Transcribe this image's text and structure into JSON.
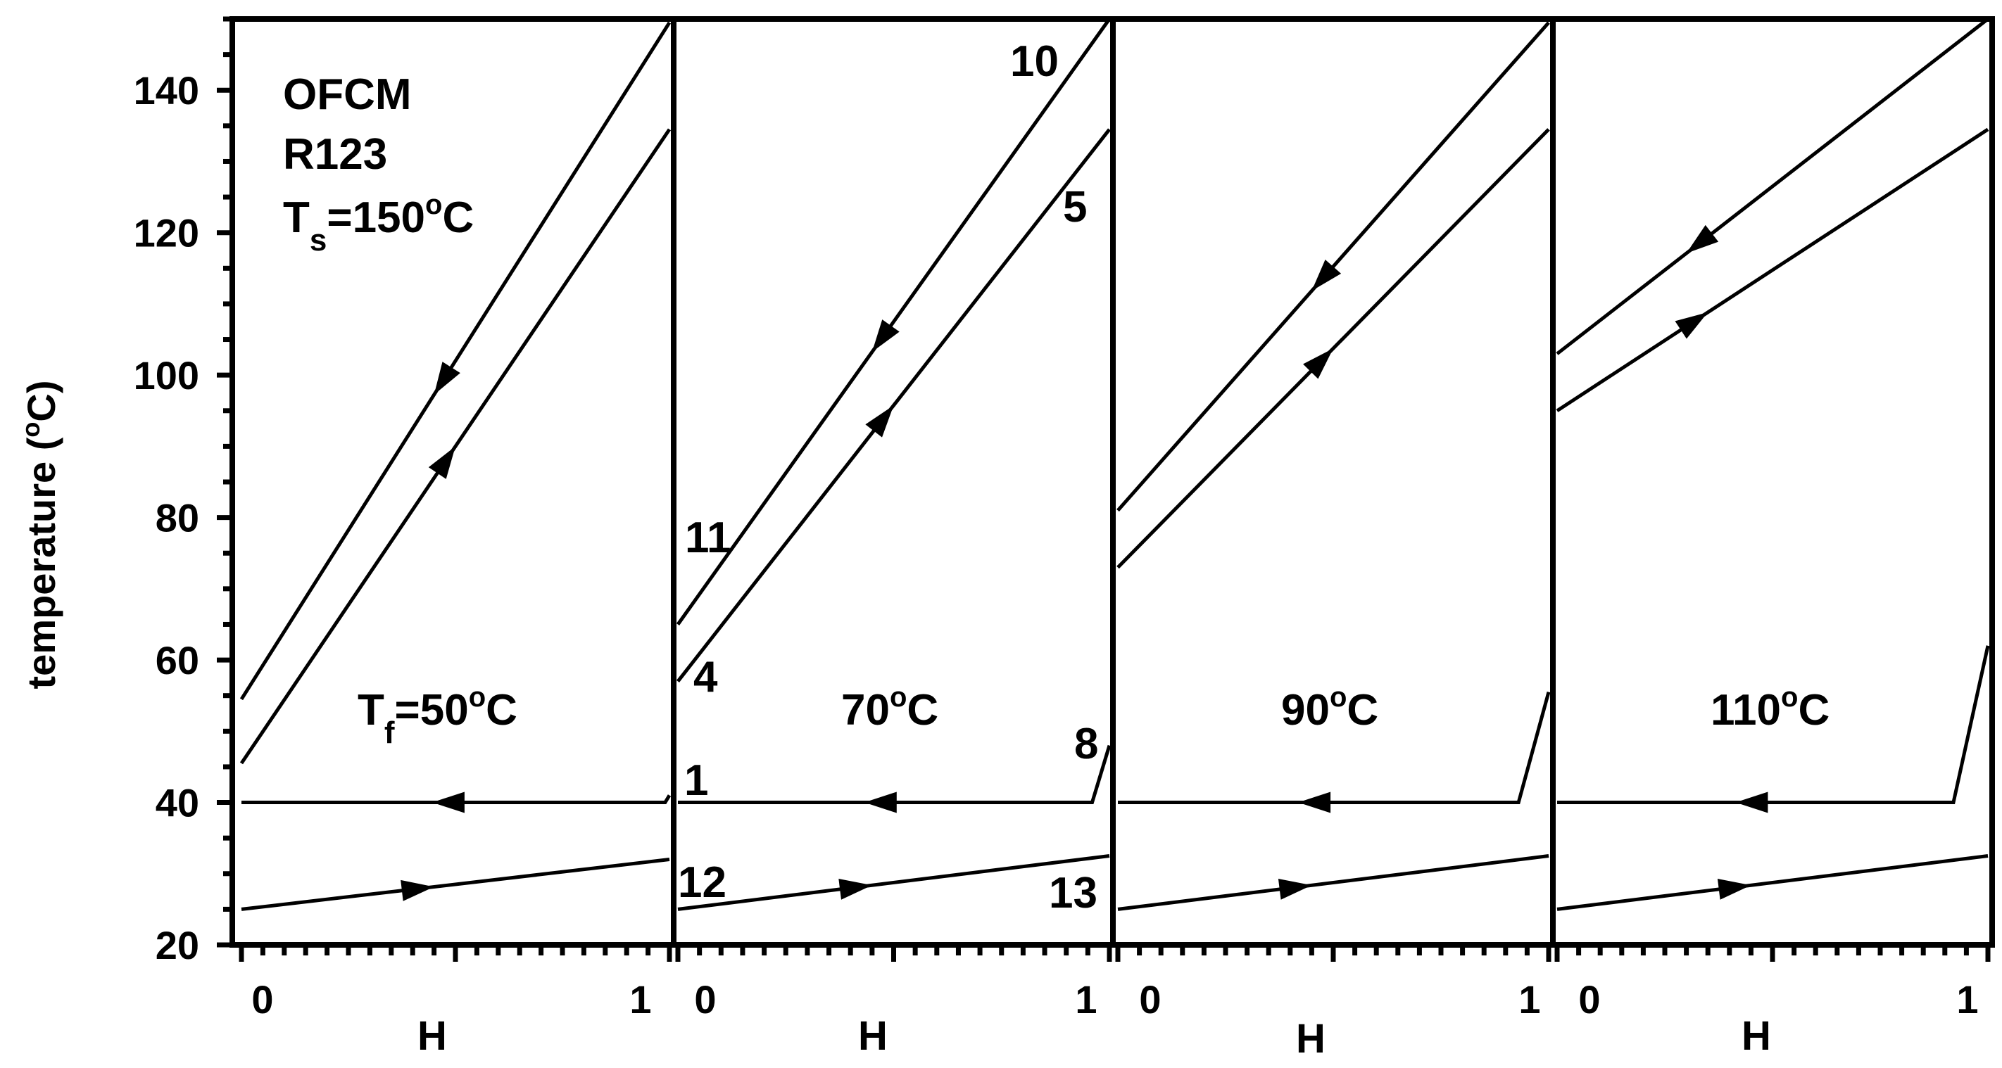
{
  "chart_data": {
    "type": "line",
    "ylabel": "temperature (",
    "ylabel_degree": "o",
    "ylabel_unit": "C)",
    "ylim": [
      20,
      150
    ],
    "yticks": [
      20,
      40,
      60,
      80,
      100,
      120,
      140
    ],
    "xlim": [
      0,
      1
    ],
    "xtick_labels": [
      "0",
      "1"
    ],
    "xlabel": "H",
    "annotation": {
      "line1": "OFCM",
      "line2": "R123",
      "ts_prefix": "T",
      "ts_sub": "s",
      "ts_value": "=150",
      "ts_degree": "o",
      "ts_unit": "C"
    },
    "point_labels": {
      "p10": "10",
      "p5": "5",
      "p11": "11",
      "p4": "4",
      "p8": "8",
      "p1": "1",
      "p12": "12",
      "p13": "13"
    },
    "panels": [
      {
        "label_prefix": "T",
        "label_sub": "f",
        "label_value": "=50",
        "label_degree": "o",
        "label_unit": "C",
        "series": [
          {
            "x": [
              0,
              1
            ],
            "y": [
              54.5,
              149.5
            ],
            "arrow": "left",
            "arrow_at": 0.45
          },
          {
            "x": [
              0,
              1
            ],
            "y": [
              45.5,
              134.5
            ],
            "arrow": "right",
            "arrow_at": 0.5
          },
          {
            "x": [
              0,
              0.99,
              1
            ],
            "y": [
              40,
              40,
              41
            ],
            "arrow": "left",
            "arrow_at": 0.45
          },
          {
            "x": [
              0,
              1
            ],
            "y": [
              25,
              32
            ],
            "arrow": "right",
            "arrow_at": 0.45
          }
        ]
      },
      {
        "label_prefix": "",
        "label_sub": "",
        "label_value": "70",
        "label_degree": "o",
        "label_unit": "C",
        "series": [
          {
            "x": [
              0,
              1
            ],
            "y": [
              65,
              150
            ],
            "arrow": "left",
            "arrow_at": 0.45
          },
          {
            "x": [
              0,
              1
            ],
            "y": [
              57,
              134.5
            ],
            "arrow": "right",
            "arrow_at": 0.5
          },
          {
            "x": [
              0,
              0.96,
              1
            ],
            "y": [
              40,
              40,
              48
            ],
            "arrow": "left",
            "arrow_at": 0.45
          },
          {
            "x": [
              0,
              1
            ],
            "y": [
              25,
              32.5
            ],
            "arrow": "right",
            "arrow_at": 0.45
          }
        ]
      },
      {
        "label_prefix": "",
        "label_sub": "",
        "label_value": "90",
        "label_degree": "o",
        "label_unit": "C",
        "series": [
          {
            "x": [
              0,
              1
            ],
            "y": [
              81,
              149.5
            ],
            "arrow": "left",
            "arrow_at": 0.45
          },
          {
            "x": [
              0,
              1
            ],
            "y": [
              73,
              134.5
            ],
            "arrow": "right",
            "arrow_at": 0.5
          },
          {
            "x": [
              0,
              0.93,
              1
            ],
            "y": [
              40,
              40,
              55.5
            ],
            "arrow": "left",
            "arrow_at": 0.45
          },
          {
            "x": [
              0,
              1
            ],
            "y": [
              25,
              32.5
            ],
            "arrow": "right",
            "arrow_at": 0.45
          }
        ]
      },
      {
        "label_prefix": "",
        "label_sub": "",
        "label_value": "110",
        "label_degree": "o",
        "label_unit": "C",
        "series": [
          {
            "x": [
              0,
              1
            ],
            "y": [
              103,
              150
            ],
            "arrow": "left",
            "arrow_at": 0.3
          },
          {
            "x": [
              0,
              1
            ],
            "y": [
              95,
              134.5
            ],
            "arrow": "right",
            "arrow_at": 0.35
          },
          {
            "x": [
              0,
              0.92,
              1
            ],
            "y": [
              40,
              40,
              62
            ],
            "arrow": "left",
            "arrow_at": 0.45
          },
          {
            "x": [
              0,
              1
            ],
            "y": [
              25,
              32.5
            ],
            "arrow": "right",
            "arrow_at": 0.45
          }
        ]
      }
    ]
  }
}
